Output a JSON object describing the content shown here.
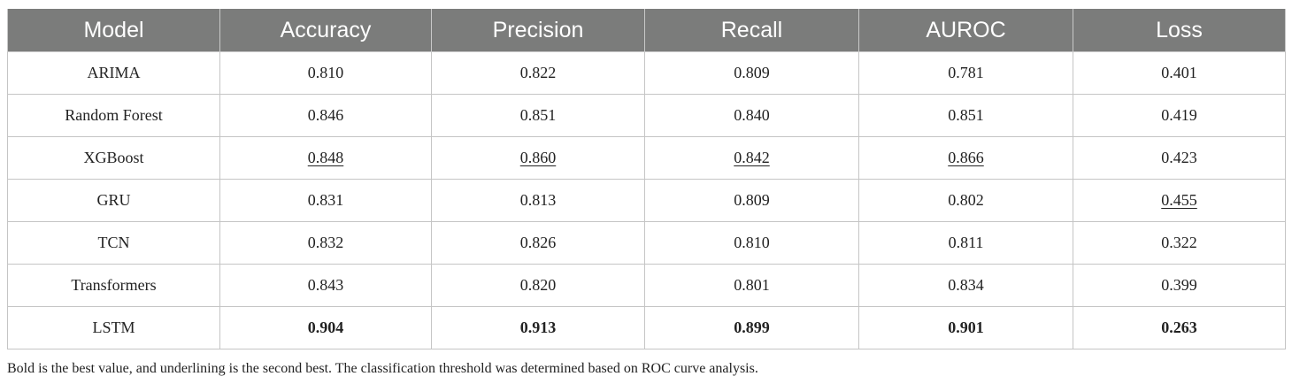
{
  "table": {
    "headers": [
      "Model",
      "Accuracy",
      "Precision",
      "Recall",
      "AUROC",
      "Loss"
    ],
    "rows": [
      {
        "model": "ARIMA",
        "accuracy": "0.810",
        "precision": "0.822",
        "recall": "0.809",
        "auroc": "0.781",
        "loss": "0.401"
      },
      {
        "model": "Random Forest",
        "accuracy": "0.846",
        "precision": "0.851",
        "recall": "0.840",
        "auroc": "0.851",
        "loss": "0.419"
      },
      {
        "model": "XGBoost",
        "accuracy": "0.848",
        "precision": "0.860",
        "recall": "0.842",
        "auroc": "0.866",
        "loss": "0.423"
      },
      {
        "model": "GRU",
        "accuracy": "0.831",
        "precision": "0.813",
        "recall": "0.809",
        "auroc": "0.802",
        "loss": "0.455"
      },
      {
        "model": "TCN",
        "accuracy": "0.832",
        "precision": "0.826",
        "recall": "0.810",
        "auroc": "0.811",
        "loss": "0.322"
      },
      {
        "model": "Transformers",
        "accuracy": "0.843",
        "precision": "0.820",
        "recall": "0.801",
        "auroc": "0.834",
        "loss": "0.399"
      },
      {
        "model": "LSTM",
        "accuracy": "0.904",
        "precision": "0.913",
        "recall": "0.899",
        "auroc": "0.901",
        "loss": "0.263"
      }
    ]
  },
  "footnote": "Bold is the best value, and underlining is the second best. The classification threshold was determined based on ROC curve analysis.",
  "colors": {
    "header_bg": "#7b7c7b",
    "header_text": "#ffffff",
    "grid": "#c5c5c5"
  }
}
